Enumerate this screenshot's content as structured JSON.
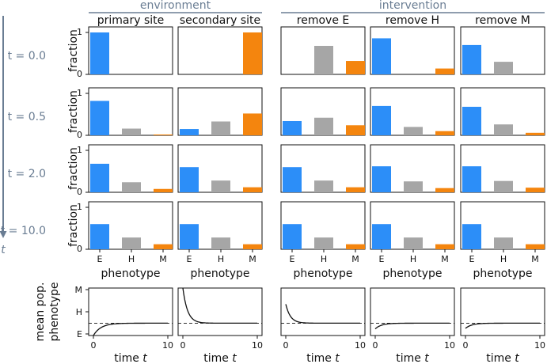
{
  "chart_data": {
    "type": "bar",
    "groups": [
      {
        "label": "environment",
        "columns": [
          0,
          1
        ]
      },
      {
        "label": "intervention",
        "columns": [
          2,
          3,
          4
        ]
      }
    ],
    "columns": [
      "primary site",
      "secondary site",
      "remove E",
      "remove H",
      "remove M"
    ],
    "time_axis_label": "t",
    "rows": [
      {
        "t_label": "t = 0.0",
        "values": [
          [
            1.0,
            0.0,
            0.0
          ],
          [
            0.0,
            0.0,
            1.0
          ],
          [
            0.0,
            0.68,
            0.32
          ],
          [
            0.86,
            0.0,
            0.14
          ],
          [
            0.7,
            0.3,
            0.0
          ]
        ]
      },
      {
        "t_label": "t = 0.5",
        "values": [
          [
            0.82,
            0.16,
            0.02
          ],
          [
            0.15,
            0.33,
            0.52
          ],
          [
            0.34,
            0.42,
            0.24
          ],
          [
            0.7,
            0.2,
            0.1
          ],
          [
            0.68,
            0.26,
            0.06
          ]
        ]
      },
      {
        "t_label": "t = 2.0",
        "values": [
          [
            0.68,
            0.24,
            0.08
          ],
          [
            0.6,
            0.28,
            0.12
          ],
          [
            0.6,
            0.28,
            0.12
          ],
          [
            0.62,
            0.26,
            0.1
          ],
          [
            0.62,
            0.27,
            0.11
          ]
        ]
      },
      {
        "t_label": "t = 10.0",
        "values": [
          [
            0.6,
            0.28,
            0.12
          ],
          [
            0.6,
            0.28,
            0.12
          ],
          [
            0.6,
            0.28,
            0.12
          ],
          [
            0.6,
            0.28,
            0.12
          ],
          [
            0.6,
            0.28,
            0.12
          ]
        ]
      }
    ],
    "categories": [
      "E",
      "H",
      "M"
    ],
    "colors": [
      "#2c8ef8",
      "#a6a6a6",
      "#f4850e"
    ],
    "ylabel": "fraction",
    "ylim": [
      0,
      1
    ],
    "yticks": [
      "0",
      "1"
    ],
    "xlabel": "phenotype",
    "mean_panels": {
      "type": "line",
      "ylabel": "mean pop. phenotype",
      "ytick_labels": [
        "E",
        "H",
        "M"
      ],
      "xlabel": "time t",
      "xlim": [
        0,
        10
      ],
      "xticks": [
        "0",
        "10"
      ],
      "steady_state": 0.52,
      "series": [
        {
          "start": 0.0,
          "end": 0.52,
          "rate": 1.0
        },
        {
          "start": 2.0,
          "end": 0.52,
          "rate": 1.6
        },
        {
          "start": 1.32,
          "end": 0.52,
          "rate": 1.6
        },
        {
          "start": 0.28,
          "end": 0.52,
          "rate": 1.2
        },
        {
          "start": 0.3,
          "end": 0.52,
          "rate": 1.2
        }
      ]
    }
  }
}
